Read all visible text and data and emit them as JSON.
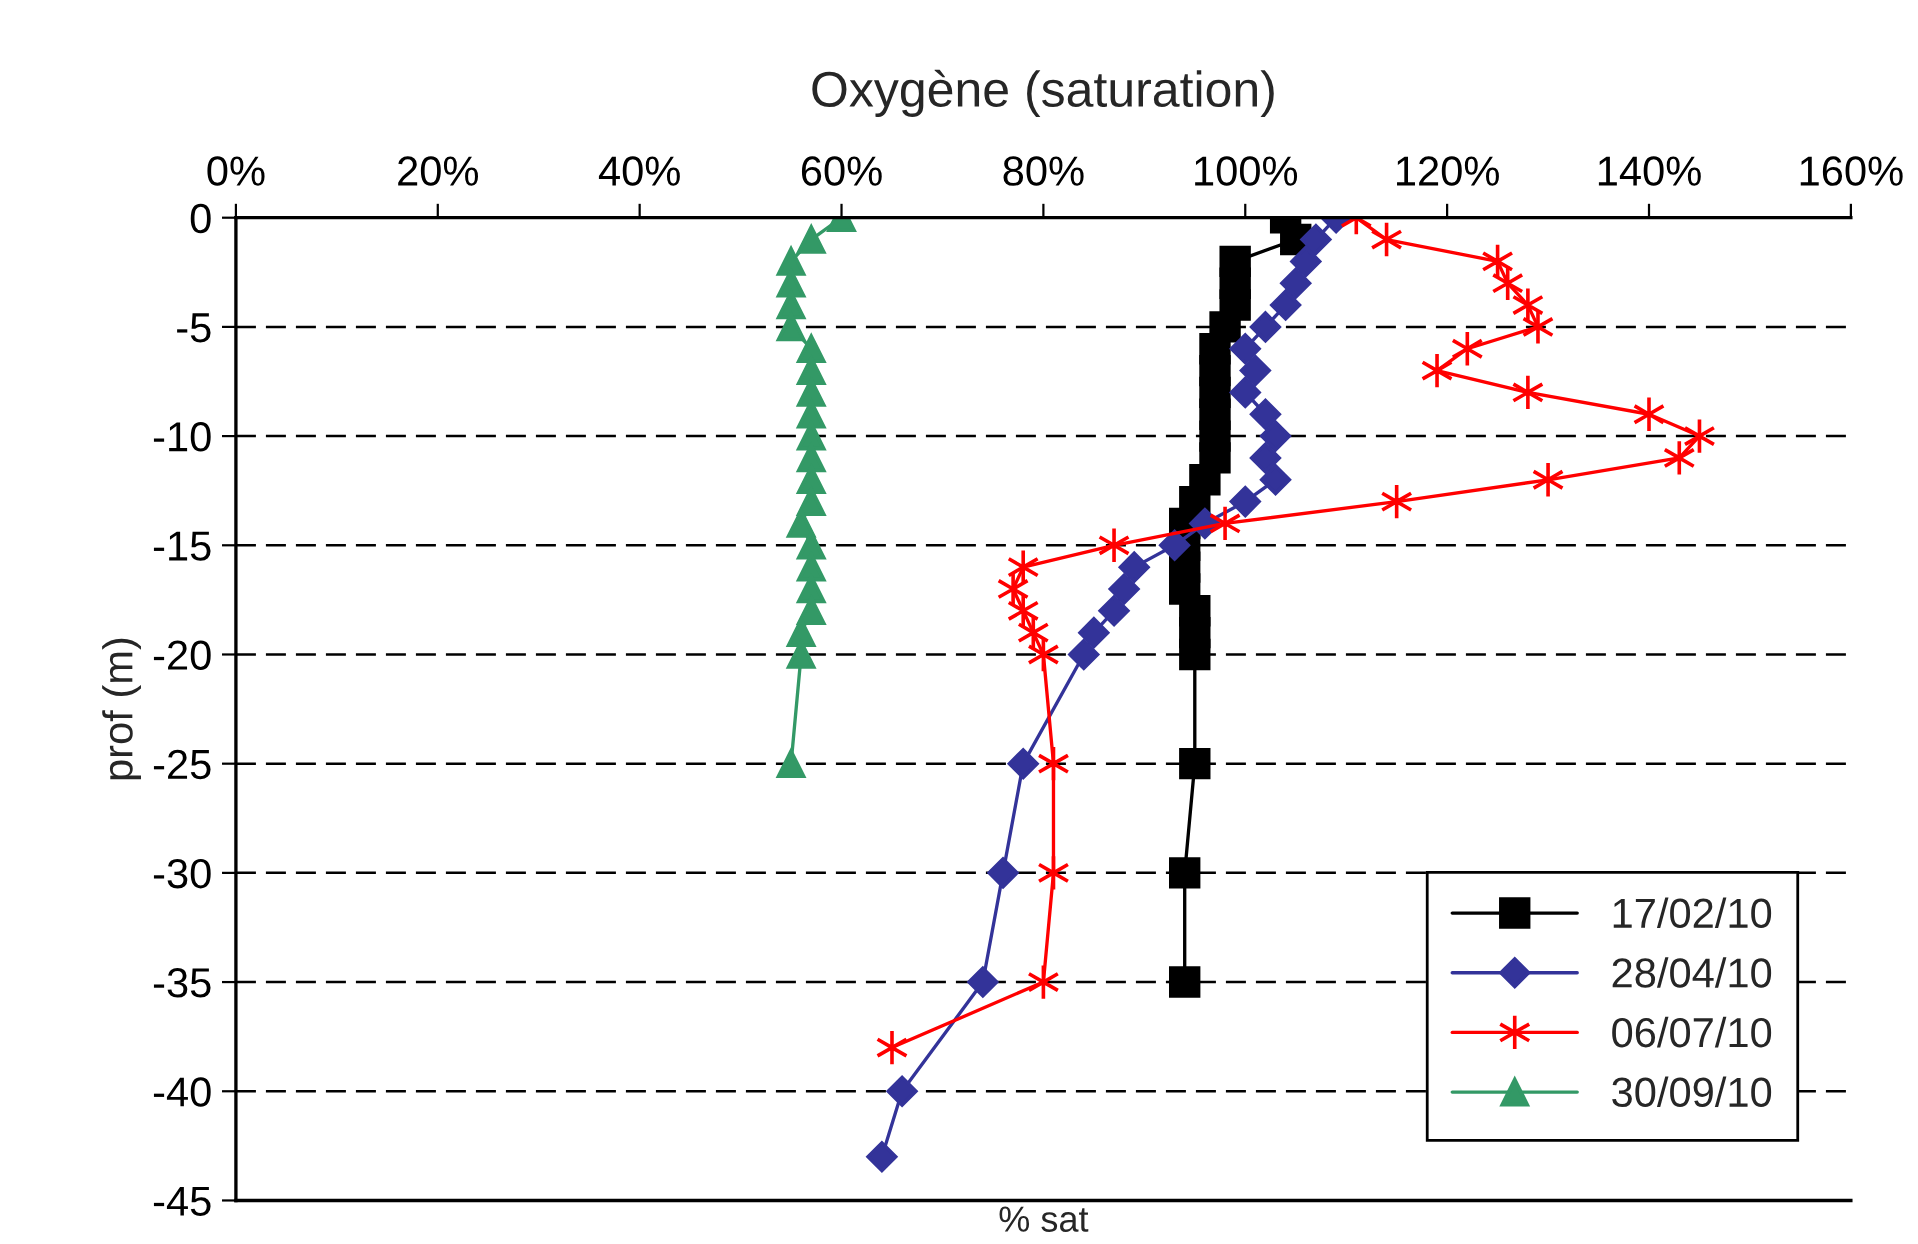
{
  "chart_data": {
    "type": "line",
    "title": "Oxygène (saturation)",
    "xlabel": "% sat",
    "ylabel": "prof (m)",
    "xlim": [
      0,
      160
    ],
    "xticks": [
      {
        "value": 0,
        "label": "0%"
      },
      {
        "value": 20,
        "label": "20%"
      },
      {
        "value": 40,
        "label": "40%"
      },
      {
        "value": 60,
        "label": "60%"
      },
      {
        "value": 80,
        "label": "80%"
      },
      {
        "value": 100,
        "label": "100%"
      },
      {
        "value": 120,
        "label": "120%"
      },
      {
        "value": 140,
        "label": "140%"
      },
      {
        "value": 160,
        "label": "160%"
      }
    ],
    "ylim": [
      -45,
      0
    ],
    "yticks": [
      0,
      -5,
      -10,
      -15,
      -20,
      -25,
      -30,
      -35,
      -40,
      -45
    ],
    "grid": "y",
    "legend": "bottom right",
    "series": [
      {
        "name": "17/02/10",
        "color": "#000000",
        "marker": "square",
        "x": [
          104,
          105,
          99,
          99,
          99,
          98,
          97,
          97,
          97,
          97,
          97,
          97,
          96,
          95,
          94,
          94,
          94,
          94,
          95,
          95,
          95,
          95,
          94,
          94
        ],
        "values": [
          0,
          -1,
          -2,
          -3,
          -4,
          -5,
          -6,
          -7,
          -8,
          -9,
          -10,
          -11,
          -12,
          -13,
          -14,
          -15,
          -16,
          -17,
          -18,
          -19,
          -20,
          -25,
          -30,
          -35
        ]
      },
      {
        "name": "28/04/10",
        "color": "#333399",
        "marker": "diamond",
        "x": [
          109,
          107,
          106,
          105,
          104,
          102,
          100,
          101,
          100,
          102,
          103,
          102,
          103,
          100,
          96,
          93,
          89,
          88,
          87,
          85,
          84,
          78,
          76,
          74,
          66,
          64
        ],
        "values": [
          0,
          -1,
          -2,
          -3,
          -4,
          -5,
          -6,
          -7,
          -8,
          -9,
          -10,
          -11,
          -12,
          -13,
          -14,
          -15,
          -16,
          -17,
          -18,
          -19,
          -20,
          -25,
          -30,
          -35,
          -40,
          -43
        ]
      },
      {
        "name": "06/07/10",
        "color": "#ff0000",
        "marker": "cross",
        "x": [
          111,
          114,
          125,
          126,
          128,
          129,
          122,
          119,
          128,
          140,
          145,
          143,
          130,
          115,
          98,
          87,
          78,
          77,
          78,
          79,
          80,
          81,
          81,
          80,
          65
        ],
        "values": [
          0,
          -1,
          -2,
          -3,
          -4,
          -5,
          -6,
          -7,
          -8,
          -9,
          -10,
          -11,
          -12,
          -13,
          -14,
          -15,
          -16,
          -17,
          -18,
          -19,
          -20,
          -25,
          -30,
          -35,
          -38
        ]
      },
      {
        "name": "30/09/10",
        "color": "#339966",
        "marker": "triangle",
        "x": [
          60,
          57,
          55,
          55,
          55,
          55,
          57,
          57,
          57,
          57,
          57,
          57,
          57,
          57,
          56,
          57,
          57,
          57,
          57,
          56,
          56,
          55
        ],
        "values": [
          0,
          -1,
          -2,
          -3,
          -4,
          -5,
          -6,
          -7,
          -8,
          -9,
          -10,
          -11,
          -12,
          -13,
          -14,
          -15,
          -16,
          -17,
          -18,
          -19,
          -20,
          -25
        ]
      }
    ]
  }
}
